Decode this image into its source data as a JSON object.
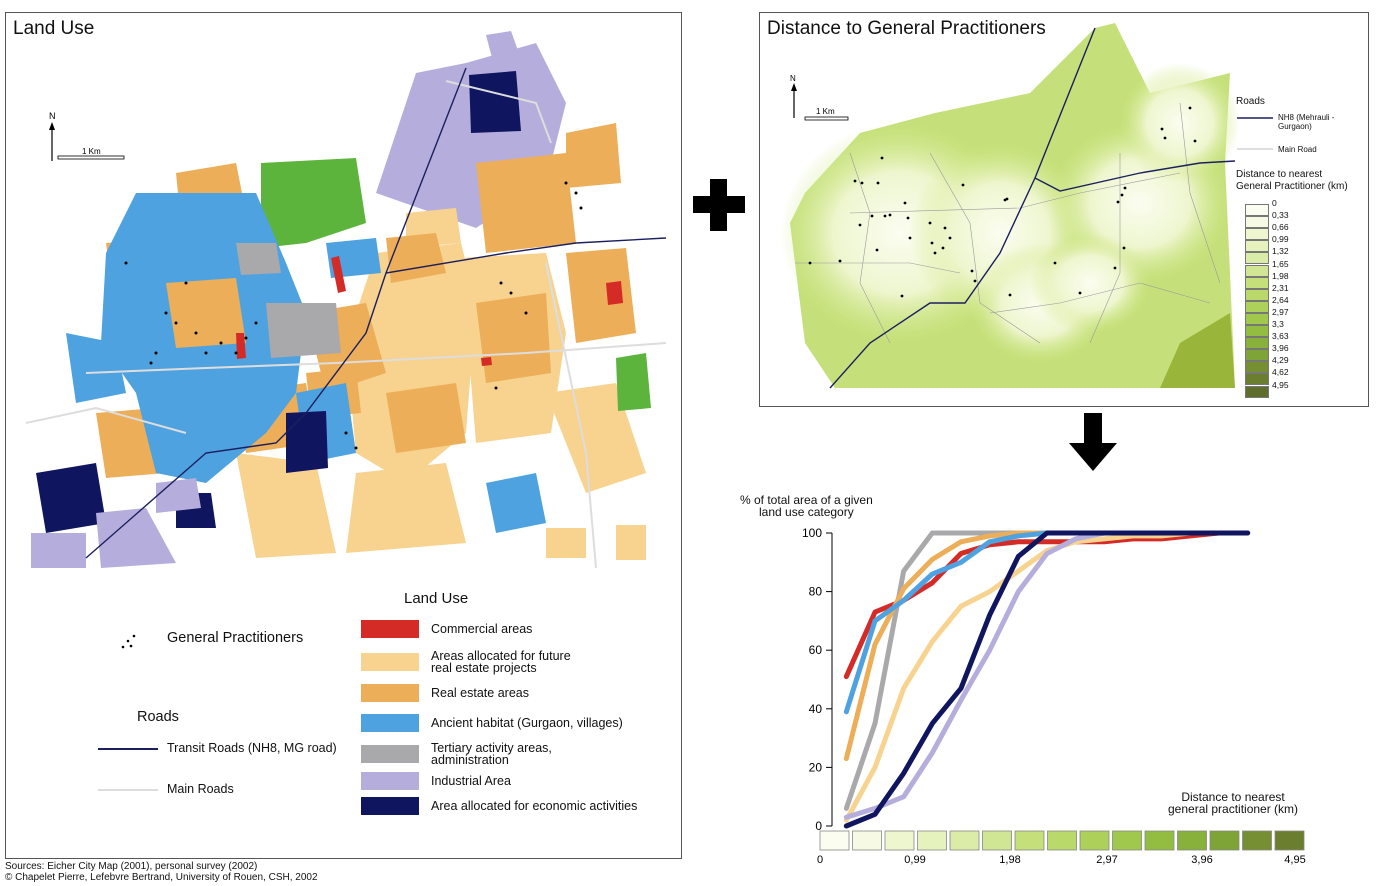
{
  "left_map": {
    "title": "Land Use",
    "north": "N",
    "scale": "1 Km"
  },
  "legend": {
    "title": "Land Use",
    "gp_label": "General Practitioners",
    "roads_title": "Roads",
    "transit_label": "Transit Roads (NH8, MG road)",
    "main_roads_label": "Main Roads",
    "items": [
      {
        "label": "Commercial areas",
        "color": "#d42b27"
      },
      {
        "label": "Areas allocated for future\nreal estate projects",
        "color": "#f7d38f"
      },
      {
        "label": "Real estate areas",
        "color": "#ecae58"
      },
      {
        "label": "Ancient habitat (Gurgaon, villages)",
        "color": "#4ea2e0"
      },
      {
        "label": "Tertiary activity areas,\nadministration",
        "color": "#a9a9ab"
      },
      {
        "label": "Industrial Area",
        "color": "#b5aedc"
      },
      {
        "label": "Area allocated for economic activities",
        "color": "#101560"
      }
    ]
  },
  "sources": {
    "line1": "Sources: Eicher City Map (2001), personal survey (2002)",
    "line2": "© Chapelet Pierre, Lefebvre Bertrand, University of Rouen, CSH, 2002"
  },
  "right_map": {
    "title": "Distance to General Practitioners",
    "north": "N",
    "scale": "1 Km",
    "roads_title": "Roads",
    "nh8_label": "NH8 (Mehrauli -\nGurgaon)",
    "main_road_label": "Main Road",
    "dist_title": "Distance to nearest\nGeneral Practitioner (km)",
    "dist_classes": [
      "0",
      "0,33",
      "0,66",
      "0,99",
      "1,32",
      "1,65",
      "1,98",
      "2,31",
      "2,64",
      "2,97",
      "3,3",
      "3,63",
      "3,96",
      "4,29",
      "4,62",
      "4,95"
    ]
  },
  "symbols": {
    "plus": "plus-icon",
    "arrow": "arrow-down-icon"
  },
  "chart_data": {
    "type": "line",
    "ylabel": "% of total area of a given\nland use category",
    "xlabel": "Distance to nearest\ngeneral practitioner (km)",
    "ylim": [
      0,
      100
    ],
    "xlim": [
      0,
      4.95
    ],
    "yticks": [
      0,
      20,
      40,
      60,
      80,
      100
    ],
    "xtick_labels": [
      "0",
      "0,99",
      "1,98",
      "2,97",
      "3,96",
      "4,95"
    ],
    "x": [
      0.165,
      0.495,
      0.825,
      1.155,
      1.485,
      1.815,
      2.145,
      2.475,
      2.805,
      3.135,
      3.465,
      3.795,
      4.125,
      4.455,
      4.785
    ],
    "series": [
      {
        "color": "#a9a9ab",
        "values": [
          6,
          35,
          87,
          100,
          100,
          100,
          100,
          100,
          100,
          100,
          100,
          100,
          100,
          100,
          100
        ]
      },
      {
        "color": "#d42b27",
        "values": [
          51,
          73,
          77,
          83,
          93,
          96,
          97,
          97,
          97,
          97,
          98,
          98,
          99,
          100,
          100
        ]
      },
      {
        "color": "#ecae58",
        "values": [
          23,
          62,
          81,
          91,
          97,
          99,
          100,
          100,
          100,
          100,
          100,
          100,
          100,
          100,
          100
        ]
      },
      {
        "color": "#4ea2e0",
        "values": [
          39,
          70,
          77,
          86,
          90,
          97,
          99,
          100,
          100,
          100,
          100,
          100,
          100,
          100,
          100
        ]
      },
      {
        "color": "#f7d38f",
        "values": [
          2,
          20,
          47,
          63,
          75,
          80,
          87,
          94,
          97,
          98,
          99,
          99,
          100,
          100,
          100
        ]
      },
      {
        "color": "#b5aedc",
        "values": [
          3,
          6,
          10,
          25,
          43,
          60,
          80,
          93,
          98,
          100,
          100,
          100,
          100,
          100,
          100
        ]
      },
      {
        "color": "#101560",
        "values": [
          0,
          4,
          18,
          35,
          47,
          72,
          92,
          100,
          100,
          100,
          100,
          100,
          100,
          100,
          100
        ]
      }
    ]
  }
}
